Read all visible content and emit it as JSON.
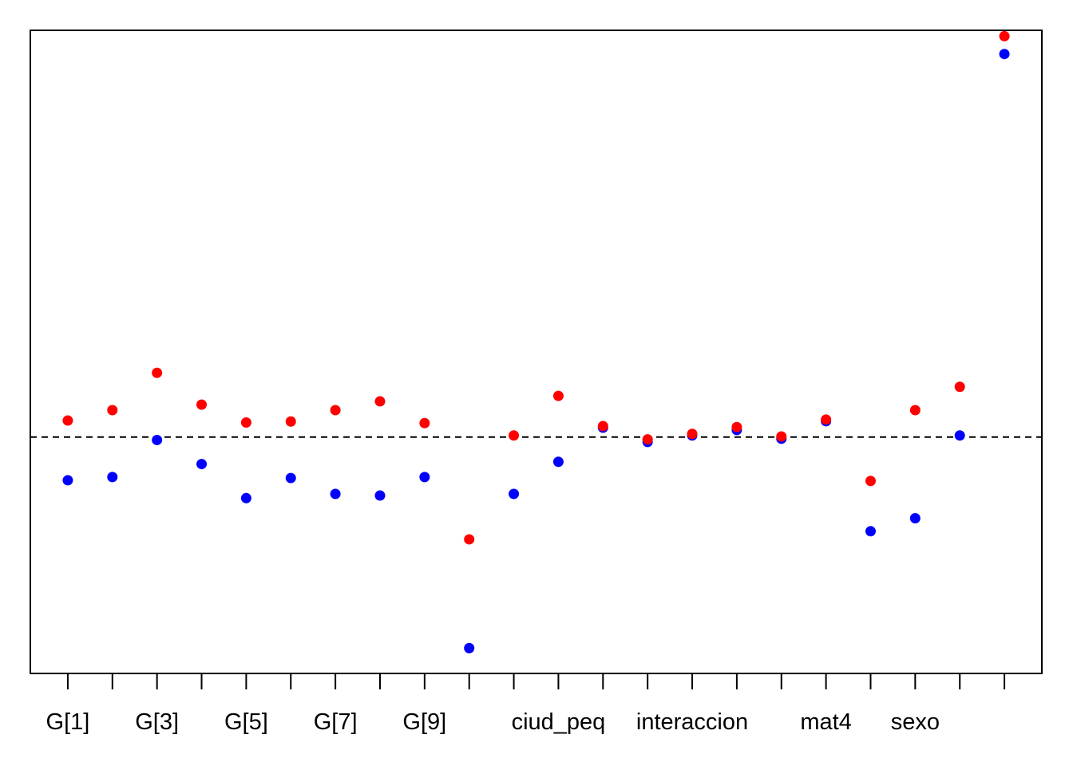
{
  "chart_data": {
    "type": "scatter",
    "x": [
      1,
      2,
      3,
      4,
      5,
      6,
      7,
      8,
      9,
      10,
      11,
      12,
      13,
      14,
      15,
      16,
      17,
      18,
      19,
      20,
      21,
      22
    ],
    "x_tick_labels": [
      {
        "x": 1,
        "label": "G[1]"
      },
      {
        "x": 3,
        "label": "G[3]"
      },
      {
        "x": 5,
        "label": "G[5]"
      },
      {
        "x": 7,
        "label": "G[7]"
      },
      {
        "x": 9,
        "label": "G[9]"
      },
      {
        "x": 12,
        "label": "ciud_peq"
      },
      {
        "x": 15,
        "label": "interaccion"
      },
      {
        "x": 18,
        "label": "mat4"
      },
      {
        "x": 20,
        "label": "sexo"
      }
    ],
    "series": [
      {
        "color": "#0000ff",
        "values": [
          -1.33,
          -1.23,
          -0.09,
          -0.83,
          -1.88,
          -1.26,
          -1.75,
          -1.8,
          -1.23,
          -6.5,
          -1.75,
          -0.76,
          0.29,
          -0.15,
          0.05,
          0.22,
          -0.05,
          0.49,
          -2.9,
          -2.5,
          0.05,
          11.8
        ]
      },
      {
        "color": "#ff0000",
        "values": [
          0.51,
          0.83,
          1.98,
          1.0,
          0.45,
          0.48,
          0.83,
          1.1,
          0.43,
          -3.15,
          0.05,
          1.27,
          0.34,
          -0.07,
          0.1,
          0.31,
          0.02,
          0.54,
          -1.35,
          0.83,
          1.55,
          12.35
        ]
      }
    ],
    "reference_line": {
      "y": 0,
      "style": "dashed"
    },
    "xlim": [
      0.16,
      22.84
    ],
    "ylim": [
      -7.28,
      12.53
    ],
    "grid": false,
    "legend": "none"
  }
}
